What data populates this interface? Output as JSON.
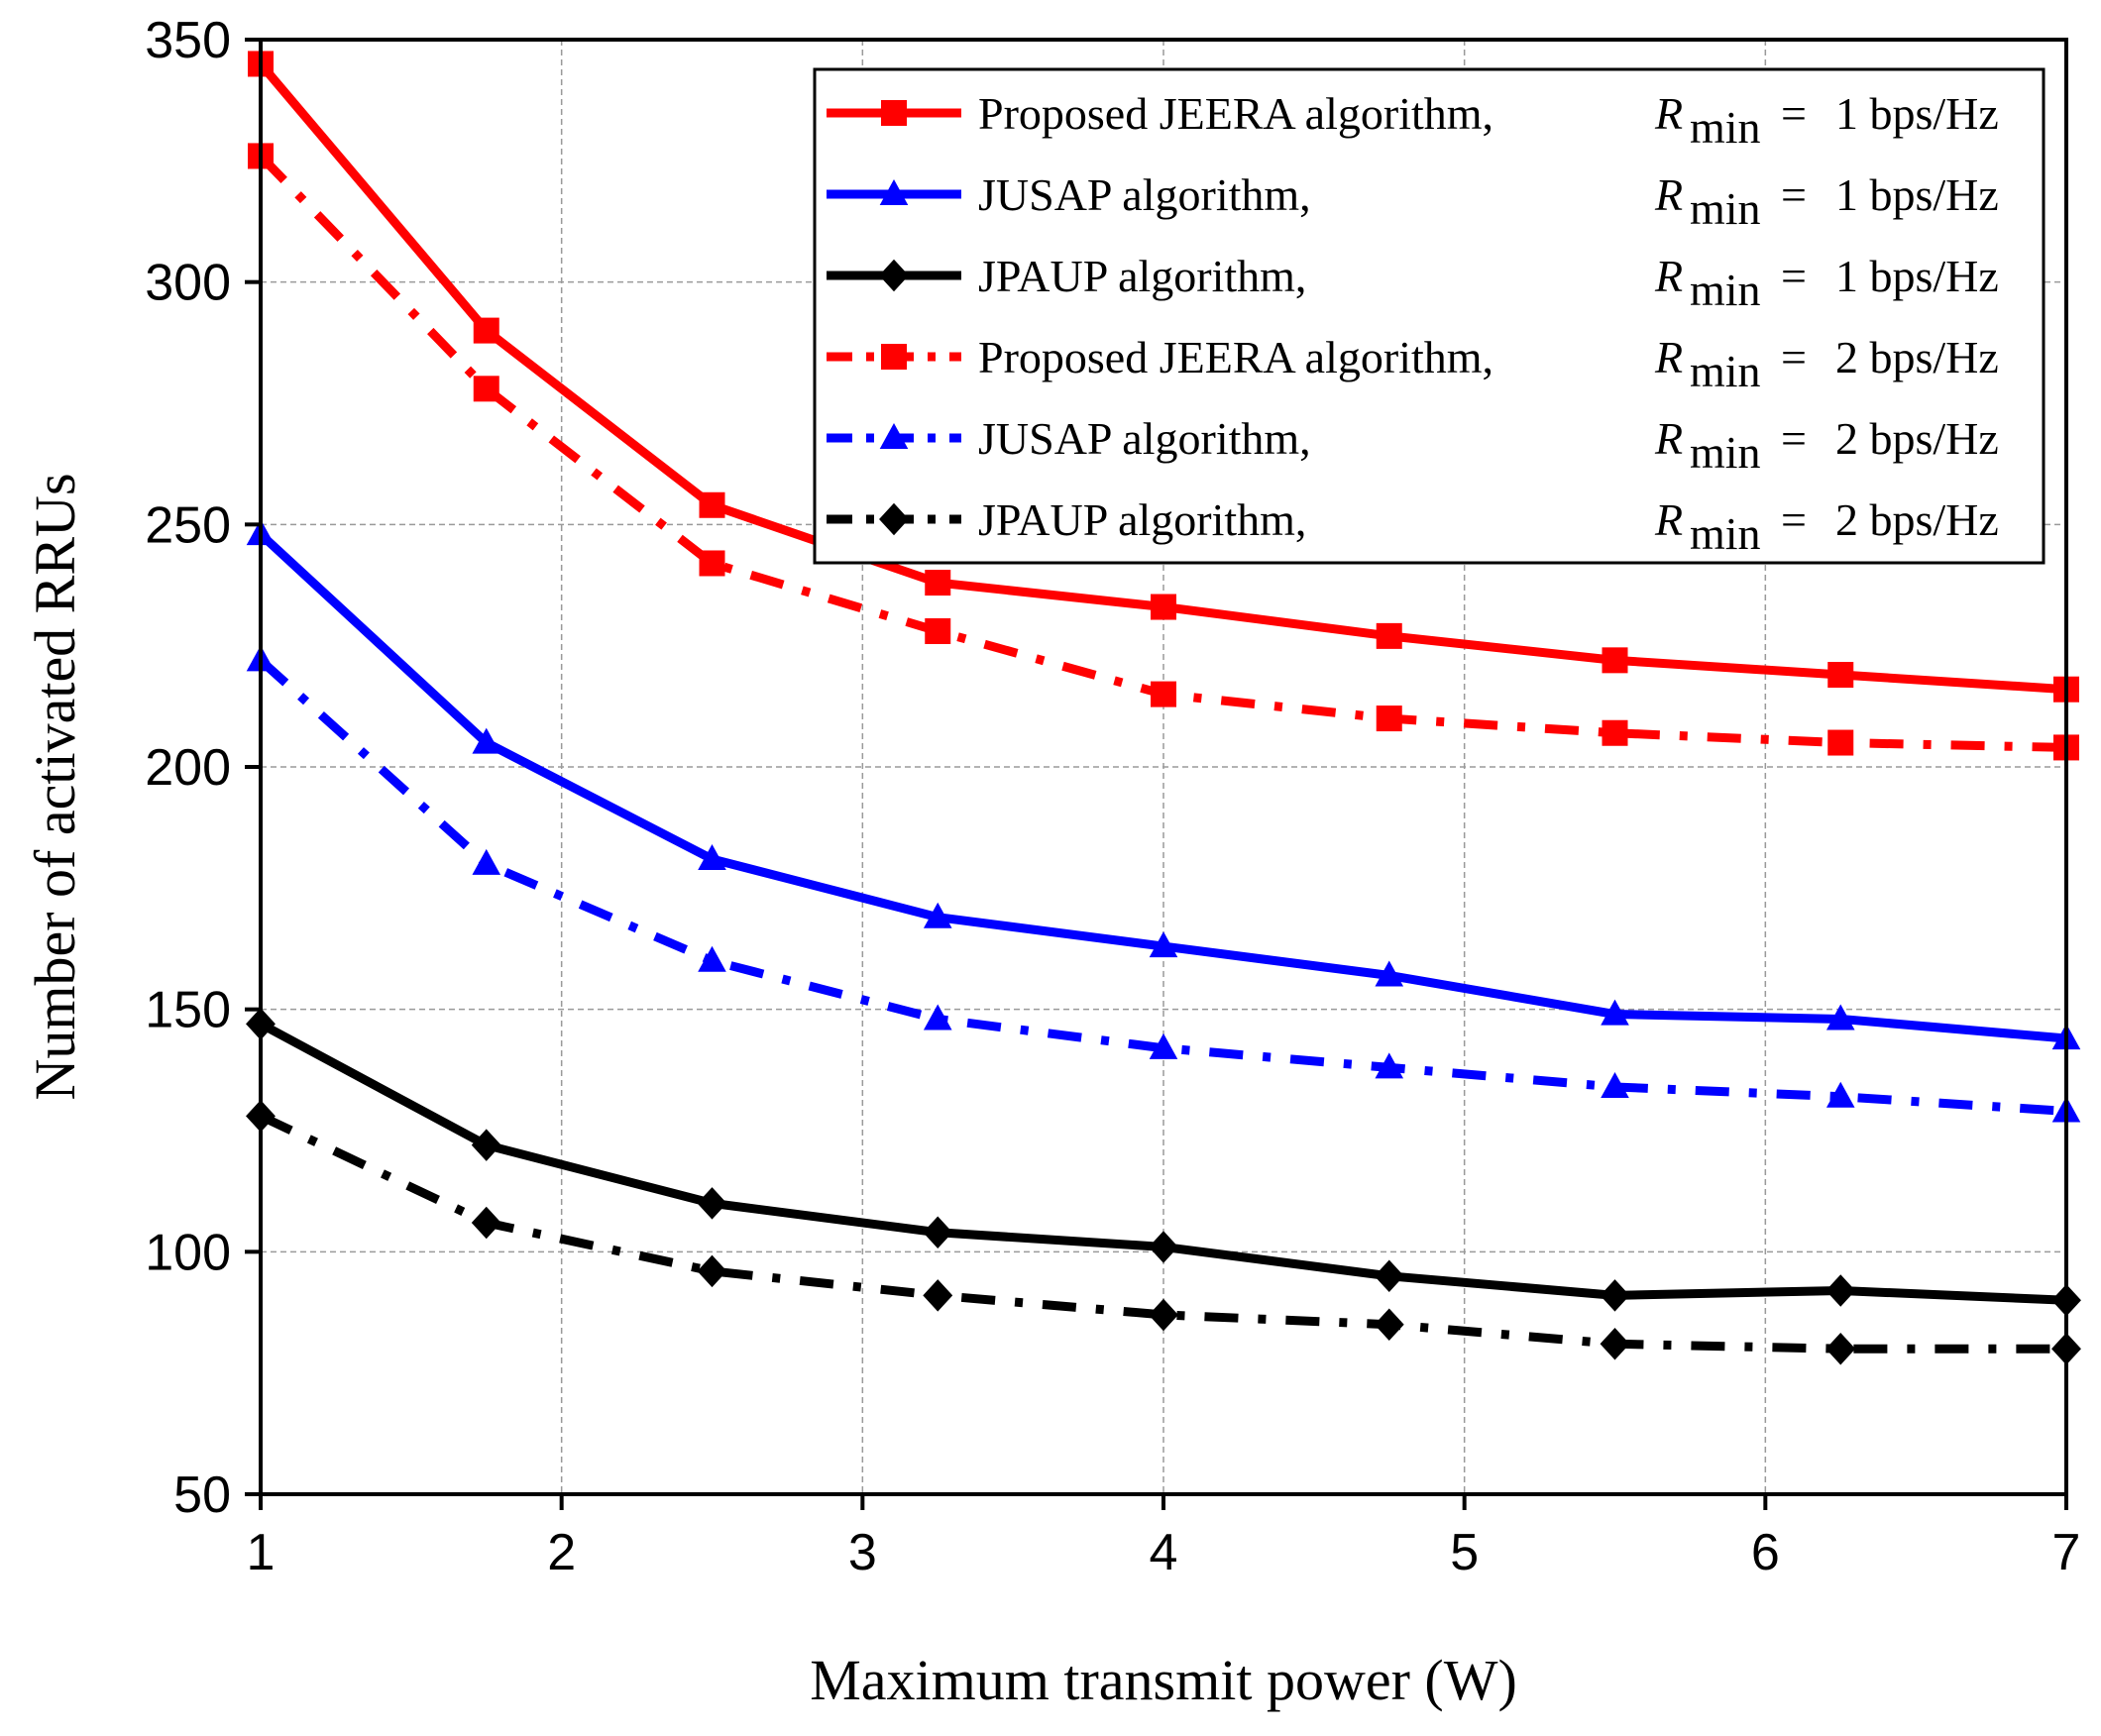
{
  "chart_data": {
    "type": "line",
    "xlabel": "Maximum transmit power (W)",
    "ylabel": "Number of activated RRUs",
    "xlim": [
      1,
      7
    ],
    "ylim": [
      50,
      350
    ],
    "xticks": [
      "1",
      "2",
      "3",
      "4",
      "5",
      "6",
      "7"
    ],
    "yticks": [
      "50",
      "100",
      "150",
      "200",
      "250",
      "300",
      "350"
    ],
    "grid": true,
    "legend_position": "top-right",
    "x": [
      1,
      1.75,
      2.5,
      3.25,
      4,
      4.75,
      5.5,
      6.25,
      7
    ],
    "series": [
      {
        "name": "Proposed JEERA algorithm,",
        "rmin": "1 bps/Hz",
        "color": "#ff0000",
        "marker": "square",
        "dash": "solid",
        "values": [
          345,
          290,
          254,
          238,
          233,
          227,
          222,
          219,
          216
        ]
      },
      {
        "name": "JUSAP algorithm,",
        "rmin": "1 bps/Hz",
        "color": "#0000ff",
        "marker": "triangle",
        "dash": "solid",
        "values": [
          248,
          205,
          181,
          169,
          163,
          157,
          149,
          148,
          144
        ]
      },
      {
        "name": "JPAUP algorithm,",
        "rmin": "1 bps/Hz",
        "color": "#000000",
        "marker": "diamond",
        "dash": "solid",
        "values": [
          147,
          122,
          110,
          104,
          101,
          95,
          91,
          92,
          90
        ]
      },
      {
        "name": "Proposed JEERA algorithm,",
        "rmin": "2 bps/Hz",
        "color": "#ff0000",
        "marker": "square",
        "dash": "dashdot",
        "values": [
          326,
          278,
          242,
          228,
          215,
          210,
          207,
          205,
          204
        ]
      },
      {
        "name": "JUSAP algorithm,",
        "rmin": "2 bps/Hz",
        "color": "#0000ff",
        "marker": "triangle",
        "dash": "dashdot",
        "values": [
          222,
          180,
          160,
          148,
          142,
          138,
          134,
          132,
          129
        ]
      },
      {
        "name": "JPAUP algorithm,",
        "rmin": "2 bps/Hz",
        "color": "#000000",
        "marker": "diamond",
        "dash": "dashdot",
        "values": [
          128,
          106,
          96,
          91,
          87,
          85,
          81,
          80,
          80
        ]
      }
    ],
    "legend_symbol": "R",
    "legend_subscript": "min",
    "legend_equals": "="
  }
}
